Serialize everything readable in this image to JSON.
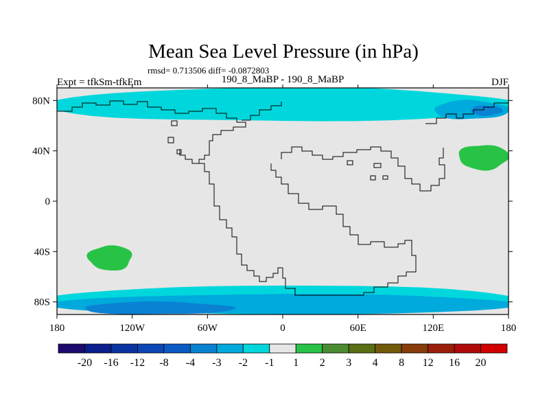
{
  "chart_data": {
    "type": "heatmap",
    "title": "Mean Sea Level Pressure (in hPa)",
    "stats_label": "rmsd= 0.713506 diff= -0.0872803",
    "left_label": "Expt = tfkSm-tfkEm",
    "center_label": "190_8_MaBP - 190_8_MaBP",
    "right_label": "DJF",
    "x_ticks": [
      "180",
      "120W",
      "60W",
      "0",
      "60E",
      "120E",
      "180"
    ],
    "y_ticks": [
      "80N",
      "40N",
      "0",
      "40S",
      "80S"
    ],
    "x_range": [
      -180,
      180
    ],
    "y_range": [
      -90,
      90
    ],
    "colorbar": {
      "labels": [
        "-20",
        "-16",
        "-12",
        "-8",
        "-4",
        "-3",
        "-2",
        "-1",
        "1",
        "2",
        "3",
        "4",
        "8",
        "12",
        "16",
        "20"
      ],
      "colors": [
        "#1e0a6e",
        "#0a1e8c",
        "#0a32a0",
        "#0a46b4",
        "#0a5ac3",
        "#0a82d2",
        "#00aadc",
        "#00d7dc",
        "#e6e6e6",
        "#28c346",
        "#4b8c32",
        "#5a6e14",
        "#735a0a",
        "#873c0a",
        "#9b1e0a",
        "#af0a0a",
        "#d20000"
      ]
    },
    "fields": [
      {
        "level": "-1 to -2",
        "color": "#00d7dc",
        "region": "Arctic band along 80N-90N",
        "lon": [
          -180,
          180
        ],
        "lat": [
          63,
          90
        ]
      },
      {
        "level": "-2 to -3",
        "color": "#00aadc",
        "region": "Arctic north of Asia",
        "lon": [
          120,
          180
        ],
        "lat": [
          65,
          80
        ]
      },
      {
        "level": "-3 to -4",
        "color": "#0a82d2",
        "region": "Arctic core near 160E",
        "lon": [
          150,
          175
        ],
        "lat": [
          68,
          76
        ]
      },
      {
        "level": "1 to 2",
        "color": "#28c346",
        "region": "North Pacific near 40N",
        "lon": [
          140,
          180
        ],
        "lat": [
          25,
          45
        ]
      },
      {
        "level": "1 to 2",
        "color": "#28c346",
        "region": "Pacific near 45S",
        "lon": [
          -155,
          -120
        ],
        "lat": [
          -55,
          -35
        ]
      },
      {
        "level": "-1 to -2",
        "color": "#00d7dc",
        "region": "Southern Ocean band",
        "lon": [
          -180,
          180
        ],
        "lat": [
          -90,
          -67
        ]
      },
      {
        "level": "-2 to -3",
        "color": "#00aadc",
        "region": "Southern Ocean band",
        "lon": [
          -180,
          180
        ],
        "lat": [
          -90,
          -74
        ]
      },
      {
        "level": "-3 to -4",
        "color": "#0a82d2",
        "region": "Southern Ocean core",
        "lon": [
          -160,
          -40
        ],
        "lat": [
          -90,
          -80
        ]
      }
    ]
  }
}
